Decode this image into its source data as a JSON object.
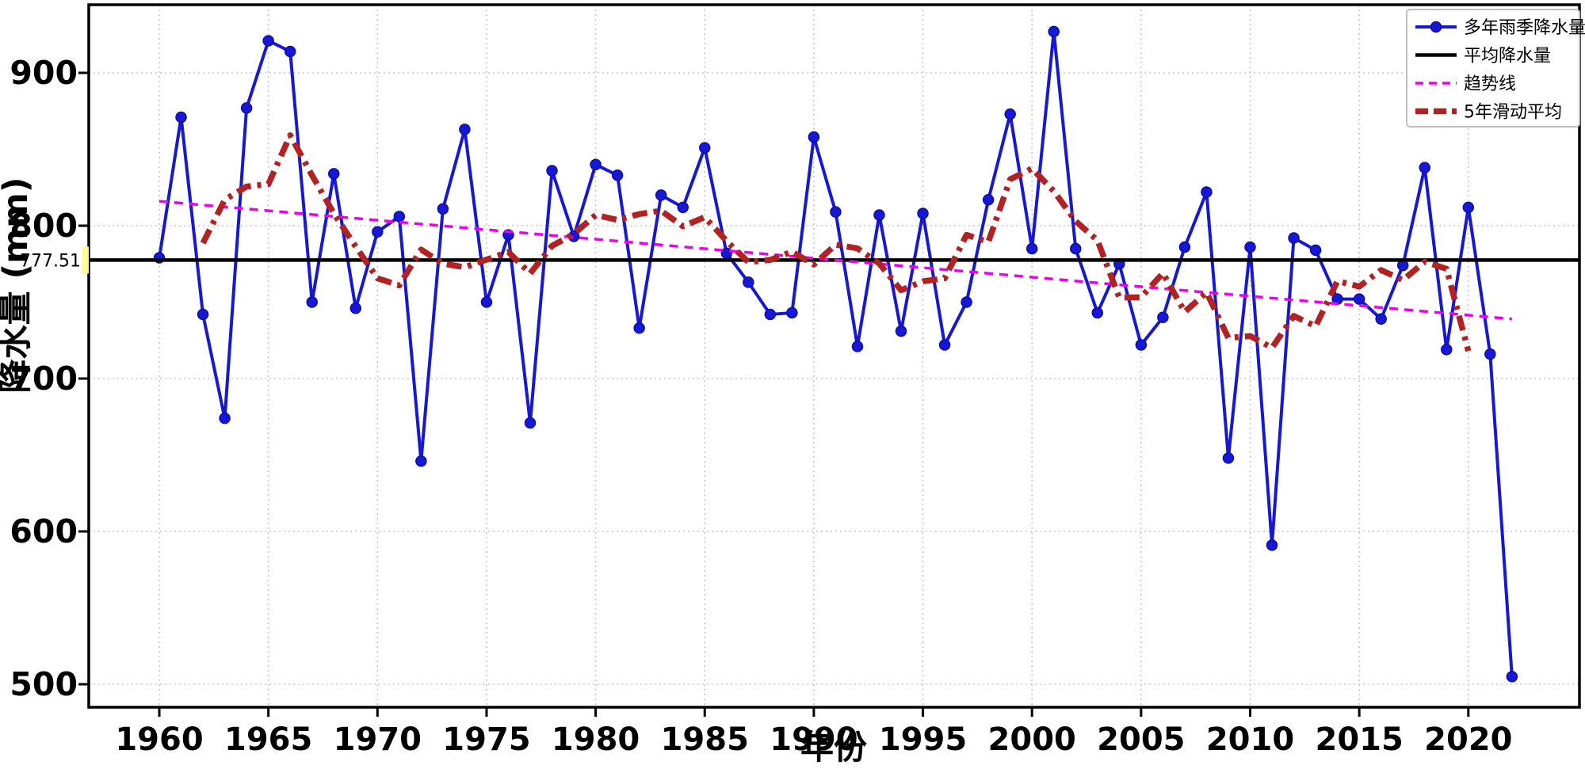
{
  "figure": {
    "background": "#ffffff",
    "plot_border_color": "#000000",
    "grid_color": "#c9c9c9"
  },
  "axes": {
    "xlabel": "年份",
    "ylabel": "降水量 (mm)",
    "tick_color": "#000000"
  },
  "annotation": {
    "mean_label": "777.51",
    "highlight_color": "#ffff88"
  },
  "legend": {
    "items": [
      {
        "label": "多年雨季降水量",
        "style": "line-marker",
        "color": "#1717d6"
      },
      {
        "label": "平均降水量",
        "style": "solid",
        "color": "#000000"
      },
      {
        "label": "趋势线",
        "style": "dashed",
        "color": "#ee00ee"
      },
      {
        "label": "5年滑动平均",
        "style": "dashdot",
        "color": "#b22222"
      }
    ]
  },
  "chart_data": {
    "type": "line",
    "title": "",
    "xlabel": "年份",
    "ylabel": "降水量 (mm)",
    "grid": true,
    "legend_position": "upper right",
    "xlim": [
      1956.8,
      2025.1
    ],
    "ylim": [
      485,
      945
    ],
    "x_ticks": [
      1960,
      1965,
      1970,
      1975,
      1980,
      1985,
      1990,
      1995,
      2000,
      2005,
      2010,
      2015,
      2020
    ],
    "y_ticks": [
      500,
      600,
      700,
      800,
      900
    ],
    "x": [
      1960,
      1961,
      1962,
      1963,
      1964,
      1965,
      1966,
      1967,
      1968,
      1969,
      1970,
      1971,
      1972,
      1973,
      1974,
      1975,
      1976,
      1977,
      1978,
      1979,
      1980,
      1981,
      1982,
      1983,
      1984,
      1985,
      1986,
      1987,
      1988,
      1989,
      1990,
      1991,
      1992,
      1993,
      1994,
      1995,
      1996,
      1997,
      1998,
      1999,
      2000,
      2001,
      2002,
      2003,
      2004,
      2005,
      2006,
      2007,
      2008,
      2009,
      2010,
      2011,
      2012,
      2013,
      2014,
      2015,
      2016,
      2017,
      2018,
      2019,
      2020,
      2021,
      2022
    ],
    "series": [
      {
        "name": "多年雨季降水量",
        "color": "#1717d6",
        "marker": "circle",
        "values": [
          779,
          871,
          742,
          674,
          877,
          921,
          914,
          750,
          834,
          746,
          796,
          806,
          646,
          811,
          863,
          750,
          794,
          671,
          836,
          793,
          840,
          833,
          733,
          820,
          812,
          851,
          782,
          763,
          742,
          743,
          858,
          809,
          721,
          807,
          731,
          808,
          722,
          750,
          817,
          873,
          785,
          927,
          785,
          743,
          775,
          722,
          740,
          786,
          822,
          648,
          786,
          591,
          792,
          784,
          752,
          752,
          739,
          774,
          838,
          719,
          812,
          716,
          505
        ]
      },
      {
        "name": "平均降水量",
        "color": "#000000",
        "derivation": "mean-of-series",
        "value": 777.51
      },
      {
        "name": "趋势线",
        "color": "#ee00ee",
        "derivation": "linear-least-squares-fit-of-series"
      },
      {
        "name": "5年滑动平均",
        "color": "#b22222",
        "derivation": "centered-moving-average",
        "window": 5
      }
    ]
  }
}
